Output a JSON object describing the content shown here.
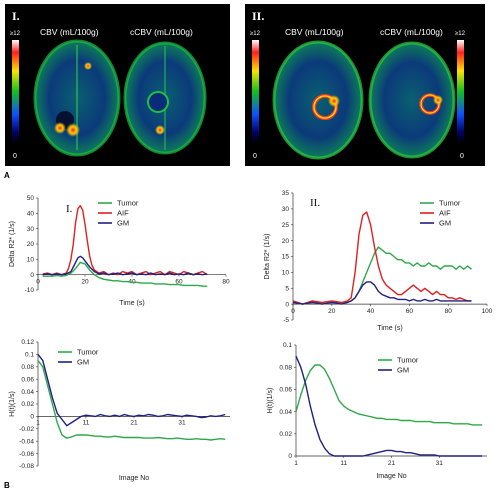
{
  "colors": {
    "tumor": "#2fa84a",
    "aif": "#e02020",
    "gm": "#202080",
    "axis": "#333333"
  },
  "panel_A": {
    "letter": "A",
    "maps": [
      {
        "roman": "I.",
        "scale_max": "≥12",
        "scale_min": "0",
        "labels": [
          "CBV (mL/100g)",
          "cCBV (mL/100g)"
        ]
      },
      {
        "roman": "II.",
        "scale_max": "≥12",
        "scale_min": "0",
        "labels": [
          "CBV (mL/100g)",
          "cCBV (mL/100g)"
        ]
      }
    ]
  },
  "panel_B": {
    "letter": "B"
  },
  "chart_data": [
    {
      "type": "line",
      "panel_label": "I.",
      "xlabel": "Time (s)",
      "ylabel": "Delta R2* (1/s)",
      "xlim": [
        0,
        80
      ],
      "ylim": [
        -10,
        50
      ],
      "xticks": [
        0,
        20,
        40,
        60,
        80
      ],
      "yticks": [
        -10,
        0,
        10,
        20,
        30,
        40,
        50
      ],
      "legend_position": "top-center",
      "grid": false,
      "series": [
        {
          "name": "Tumor",
          "color": "#2fa84a",
          "x": [
            2,
            4,
            6,
            8,
            10,
            12,
            14,
            16,
            18,
            20,
            22,
            24,
            26,
            28,
            30,
            32,
            34,
            36,
            38,
            40,
            42,
            44,
            46,
            48,
            50,
            52,
            54,
            56,
            58,
            60,
            62,
            64,
            66,
            68,
            70,
            72
          ],
          "y": [
            -1,
            -1,
            -1,
            -0.5,
            -1,
            -0.5,
            1,
            4,
            8,
            7,
            3,
            0,
            -2,
            -3,
            -3.5,
            -4,
            -4,
            -4.5,
            -4.5,
            -5,
            -5,
            -5.5,
            -5.5,
            -5.5,
            -6,
            -6,
            -6,
            -6.5,
            -6.5,
            -6.5,
            -7,
            -7,
            -7,
            -7,
            -7.5,
            -7.5
          ]
        },
        {
          "name": "AIF",
          "color": "#e02020",
          "x": [
            2,
            4,
            6,
            8,
            10,
            12,
            13,
            14,
            15,
            16,
            17,
            18,
            19,
            20,
            21,
            22,
            23,
            24,
            26,
            28,
            30,
            32,
            34,
            36,
            38,
            40,
            42,
            44,
            46,
            48,
            50,
            52,
            54,
            56,
            58,
            60,
            62,
            64,
            66,
            68,
            70,
            72
          ],
          "y": [
            0.5,
            1,
            0,
            1,
            0,
            1,
            4,
            10,
            20,
            34,
            43,
            45,
            42,
            33,
            22,
            12,
            6,
            3,
            1,
            2,
            0,
            1,
            0,
            2,
            1,
            2,
            0,
            1,
            2,
            0,
            1,
            2,
            0,
            2,
            1,
            0,
            2,
            1,
            0,
            1,
            2,
            0
          ]
        },
        {
          "name": "GM",
          "color": "#202080",
          "x": [
            2,
            4,
            6,
            8,
            10,
            12,
            14,
            15,
            16,
            17,
            18,
            19,
            20,
            21,
            22,
            24,
            26,
            28,
            30,
            32,
            34,
            36,
            38,
            40,
            42,
            44,
            46,
            48,
            50,
            52,
            54,
            56,
            58,
            60,
            62,
            64,
            66,
            68,
            70,
            72
          ],
          "y": [
            0,
            0.5,
            0,
            0.5,
            0,
            0.5,
            2,
            5,
            8,
            11,
            12,
            11,
            9,
            7,
            5,
            2,
            0.5,
            1,
            0,
            0.5,
            1,
            0,
            0.5,
            1,
            0,
            0.5,
            0,
            1,
            0,
            0.5,
            0,
            1,
            0,
            0.5,
            0,
            1,
            0,
            0.5,
            0,
            0.5
          ]
        }
      ]
    },
    {
      "type": "line",
      "panel_label": "II.",
      "xlabel": "Time (s)",
      "ylabel": "Delta R2* (1/s)",
      "xlim": [
        0,
        100
      ],
      "ylim": [
        -5,
        35
      ],
      "xticks": [
        0,
        20,
        40,
        60,
        80,
        100
      ],
      "yticks": [
        -5,
        0,
        5,
        10,
        15,
        20,
        25,
        30,
        35
      ],
      "legend_position": "top-right",
      "grid": false,
      "series": [
        {
          "name": "Tumor",
          "color": "#2fa84a",
          "x": [
            0,
            5,
            10,
            15,
            20,
            25,
            28,
            30,
            32,
            34,
            36,
            38,
            40,
            42,
            44,
            46,
            48,
            50,
            52,
            54,
            56,
            58,
            60,
            62,
            64,
            66,
            68,
            70,
            72,
            74,
            76,
            78,
            80,
            82,
            84,
            86,
            88,
            90,
            92
          ],
          "y": [
            0.5,
            0,
            1,
            0,
            0.5,
            0.5,
            0.5,
            1,
            2,
            4,
            7,
            10,
            13,
            16,
            18,
            17,
            16,
            16,
            15,
            14,
            14,
            13,
            13,
            12,
            13,
            12,
            12,
            13,
            12,
            12,
            11,
            12,
            12,
            12,
            11,
            12,
            11,
            12,
            11
          ]
        },
        {
          "name": "AIF",
          "color": "#e02020",
          "x": [
            0,
            5,
            10,
            15,
            20,
            25,
            28,
            30,
            32,
            34,
            36,
            38,
            40,
            42,
            44,
            46,
            48,
            50,
            52,
            54,
            56,
            58,
            60,
            62,
            64,
            66,
            68,
            70,
            72,
            74,
            76,
            78,
            80,
            82,
            84,
            86,
            88,
            90,
            92
          ],
          "y": [
            1,
            0,
            1,
            0.5,
            1,
            0.5,
            1,
            2,
            10,
            22,
            28,
            29,
            25,
            18,
            12,
            8,
            6,
            5,
            4,
            3,
            3,
            4,
            5,
            6,
            5,
            4,
            5,
            4,
            3,
            4,
            3,
            3,
            2,
            2,
            1.5,
            2,
            1.5,
            1,
            1
          ]
        },
        {
          "name": "GM",
          "color": "#202080",
          "x": [
            0,
            5,
            10,
            15,
            20,
            25,
            28,
            30,
            32,
            34,
            36,
            38,
            40,
            42,
            44,
            46,
            48,
            50,
            52,
            54,
            56,
            58,
            60,
            62,
            64,
            66,
            68,
            70,
            72,
            74,
            76,
            78,
            80,
            82,
            84,
            86,
            88,
            90,
            92
          ],
          "y": [
            0.5,
            0,
            0.5,
            0,
            0.5,
            0,
            0.5,
            1,
            2,
            4,
            6,
            7,
            7,
            6,
            4,
            3,
            2.5,
            2,
            2,
            1.5,
            1.5,
            1.5,
            1,
            1.5,
            1,
            1,
            1.5,
            1,
            1,
            1.5,
            1,
            1,
            1,
            1,
            1,
            1,
            1,
            1,
            1
          ]
        }
      ]
    },
    {
      "type": "line",
      "panel_label": "",
      "xlabel": "Image No",
      "ylabel": "H(t)(1/s)",
      "xlim": [
        1,
        41
      ],
      "ylim": [
        -0.08,
        0.12
      ],
      "xticks": [
        1,
        11,
        21,
        31
      ],
      "yticks": [
        -0.08,
        -0.06,
        -0.04,
        -0.02,
        0,
        0.02,
        0.04,
        0.06,
        0.08,
        0.1,
        0.12
      ],
      "ytick_labels": [
        "-0.08",
        "-0.06",
        "-0.04",
        "-0.02",
        "0",
        "0.02",
        "0.04",
        "0.06",
        "0.08",
        "0.1",
        "0.12"
      ],
      "legend_position": "top-center",
      "grid": false,
      "series": [
        {
          "name": "Tumor",
          "color": "#2fa84a",
          "x": [
            1,
            2,
            3,
            4,
            5,
            6,
            7,
            8,
            9,
            10,
            11,
            12,
            13,
            14,
            15,
            16,
            17,
            18,
            19,
            20,
            21,
            22,
            23,
            24,
            25,
            26,
            27,
            28,
            29,
            30,
            31,
            32,
            33,
            34,
            35,
            36,
            37,
            38,
            39,
            40
          ],
          "y": [
            0.09,
            0.08,
            0.05,
            0.02,
            -0.01,
            -0.03,
            -0.035,
            -0.033,
            -0.03,
            -0.03,
            -0.03,
            -0.031,
            -0.032,
            -0.032,
            -0.033,
            -0.033,
            -0.032,
            -0.033,
            -0.034,
            -0.034,
            -0.034,
            -0.034,
            -0.035,
            -0.035,
            -0.035,
            -0.034,
            -0.035,
            -0.036,
            -0.036,
            -0.035,
            -0.036,
            -0.037,
            -0.037,
            -0.036,
            -0.037,
            -0.037,
            -0.038,
            -0.037,
            -0.036,
            -0.037
          ]
        },
        {
          "name": "GM",
          "color": "#202080",
          "x": [
            1,
            2,
            3,
            4,
            5,
            6,
            7,
            8,
            9,
            10,
            11,
            12,
            13,
            14,
            15,
            16,
            17,
            18,
            19,
            20,
            21,
            22,
            23,
            24,
            25,
            26,
            27,
            28,
            29,
            30,
            31,
            32,
            33,
            34,
            35,
            36,
            37,
            38,
            39,
            40
          ],
          "y": [
            0.1,
            0.09,
            0.06,
            0.03,
            0.005,
            -0.005,
            -0.015,
            -0.01,
            -0.005,
            0,
            0.002,
            0.001,
            0,
            0.003,
            0.001,
            0,
            0.002,
            0,
            0.003,
            0.001,
            0,
            0.002,
            0.001,
            0.003,
            0.002,
            0,
            0.001,
            0.003,
            0.002,
            0.001,
            0,
            0.002,
            0.001,
            0,
            -0.002,
            -0.001,
            0.001,
            0,
            0.001,
            0.003
          ]
        }
      ]
    },
    {
      "type": "line",
      "panel_label": "",
      "xlabel": "Image No",
      "ylabel": "H(t)(1/s)",
      "xlim": [
        1,
        41
      ],
      "ylim": [
        0,
        0.1
      ],
      "xticks": [
        1,
        11,
        21,
        31
      ],
      "yticks": [
        0,
        0.02,
        0.04,
        0.06,
        0.08,
        0.1
      ],
      "ytick_labels": [
        "0",
        "0.02",
        "0.04",
        "0.06",
        "0.08",
        "0.1"
      ],
      "legend_position": "top-right",
      "grid": false,
      "series": [
        {
          "name": "Tumor",
          "color": "#2fa84a",
          "x": [
            1,
            2,
            3,
            4,
            5,
            6,
            7,
            8,
            9,
            10,
            11,
            12,
            13,
            14,
            15,
            16,
            17,
            18,
            19,
            20,
            21,
            22,
            23,
            24,
            25,
            26,
            27,
            28,
            29,
            30,
            31,
            32,
            33,
            34,
            35,
            36,
            37,
            38,
            39,
            40
          ],
          "y": [
            0.04,
            0.055,
            0.068,
            0.077,
            0.082,
            0.082,
            0.078,
            0.07,
            0.06,
            0.05,
            0.045,
            0.042,
            0.04,
            0.038,
            0.037,
            0.036,
            0.035,
            0.034,
            0.034,
            0.033,
            0.033,
            0.033,
            0.032,
            0.032,
            0.032,
            0.031,
            0.031,
            0.031,
            0.031,
            0.03,
            0.03,
            0.03,
            0.03,
            0.029,
            0.029,
            0.029,
            0.029,
            0.028,
            0.028,
            0.028
          ]
        },
        {
          "name": "GM",
          "color": "#202080",
          "x": [
            1,
            2,
            3,
            4,
            5,
            6,
            7,
            8,
            9,
            10,
            11,
            12,
            13,
            14,
            15,
            16,
            17,
            18,
            19,
            20,
            21,
            22,
            23,
            24,
            25,
            26,
            27,
            28,
            29,
            30,
            31,
            32,
            33,
            34,
            35,
            36,
            37,
            38,
            39,
            40
          ],
          "y": [
            0.09,
            0.08,
            0.065,
            0.045,
            0.028,
            0.015,
            0.007,
            0.002,
            0,
            0,
            0,
            0,
            0,
            0,
            0,
            0.001,
            0.002,
            0.003,
            0.004,
            0.005,
            0.005,
            0.004,
            0.004,
            0.003,
            0.003,
            0.002,
            0.001,
            0.001,
            0.001,
            0.001,
            0,
            0,
            0,
            0,
            0,
            0,
            0,
            0,
            0,
            0
          ]
        }
      ]
    }
  ]
}
